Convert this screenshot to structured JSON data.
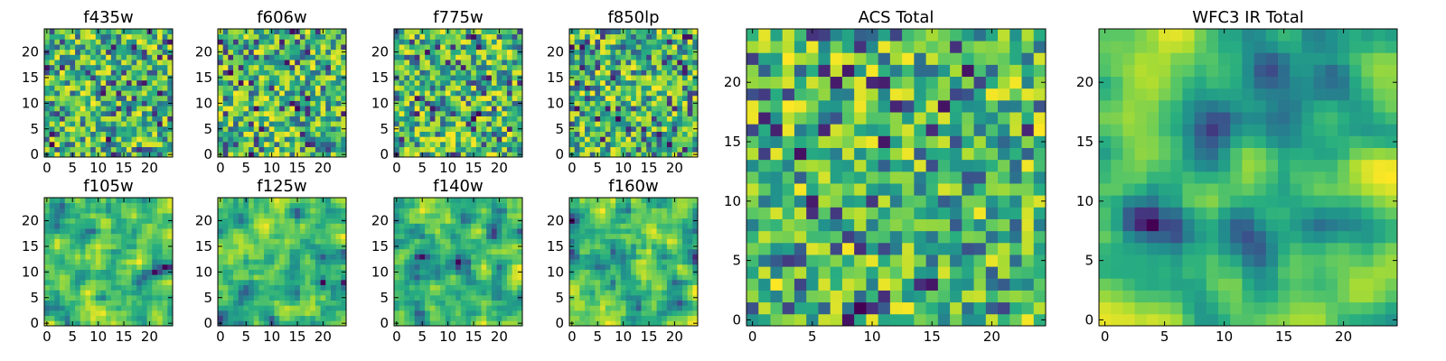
{
  "chart_data": [
    {
      "type": "heatmap",
      "title": "f435w",
      "grid_size": 25,
      "xticks": [
        "0",
        "5",
        "10",
        "15",
        "20"
      ],
      "yticks": [
        "0",
        "5",
        "10",
        "15",
        "20"
      ],
      "xlim": [
        -0.5,
        24.5
      ],
      "ylim": [
        -0.5,
        24.5
      ],
      "colormap": "viridis",
      "smoothness": 0,
      "grid": false
    },
    {
      "type": "heatmap",
      "title": "f606w",
      "grid_size": 25,
      "xticks": [
        "0",
        "5",
        "10",
        "15",
        "20"
      ],
      "yticks": [
        "0",
        "5",
        "10",
        "15",
        "20"
      ],
      "xlim": [
        -0.5,
        24.5
      ],
      "ylim": [
        -0.5,
        24.5
      ],
      "colormap": "viridis",
      "smoothness": 0,
      "grid": false
    },
    {
      "type": "heatmap",
      "title": "f775w",
      "grid_size": 25,
      "xticks": [
        "0",
        "5",
        "10",
        "15",
        "20"
      ],
      "yticks": [
        "0",
        "5",
        "10",
        "15",
        "20"
      ],
      "xlim": [
        -0.5,
        24.5
      ],
      "ylim": [
        -0.5,
        24.5
      ],
      "colormap": "viridis",
      "smoothness": 0,
      "grid": false
    },
    {
      "type": "heatmap",
      "title": "f850lp",
      "grid_size": 25,
      "xticks": [
        "0",
        "5",
        "10",
        "15",
        "20"
      ],
      "yticks": [
        "0",
        "5",
        "10",
        "15",
        "20"
      ],
      "xlim": [
        -0.5,
        24.5
      ],
      "ylim": [
        -0.5,
        24.5
      ],
      "colormap": "viridis",
      "smoothness": 0,
      "grid": false
    },
    {
      "type": "heatmap",
      "title": "f105w",
      "grid_size": 25,
      "xticks": [
        "0",
        "5",
        "10",
        "15",
        "20"
      ],
      "yticks": [
        "0",
        "5",
        "10",
        "15",
        "20"
      ],
      "xlim": [
        -0.5,
        24.5
      ],
      "ylim": [
        -0.5,
        24.5
      ],
      "colormap": "viridis",
      "smoothness": 1,
      "grid": false
    },
    {
      "type": "heatmap",
      "title": "f125w",
      "grid_size": 25,
      "xticks": [
        "0",
        "5",
        "10",
        "15",
        "20"
      ],
      "yticks": [
        "0",
        "5",
        "10",
        "15",
        "20"
      ],
      "xlim": [
        -0.5,
        24.5
      ],
      "ylim": [
        -0.5,
        24.5
      ],
      "colormap": "viridis",
      "smoothness": 1,
      "grid": false
    },
    {
      "type": "heatmap",
      "title": "f140w",
      "grid_size": 25,
      "xticks": [
        "0",
        "5",
        "10",
        "15",
        "20"
      ],
      "yticks": [
        "0",
        "5",
        "10",
        "15",
        "20"
      ],
      "xlim": [
        -0.5,
        24.5
      ],
      "ylim": [
        -0.5,
        24.5
      ],
      "colormap": "viridis",
      "smoothness": 1,
      "grid": false
    },
    {
      "type": "heatmap",
      "title": "f160w",
      "grid_size": 25,
      "xticks": [
        "0",
        "5",
        "10",
        "15",
        "20"
      ],
      "yticks": [
        "0",
        "5",
        "10",
        "15",
        "20"
      ],
      "xlim": [
        -0.5,
        24.5
      ],
      "ylim": [
        -0.5,
        24.5
      ],
      "colormap": "viridis",
      "smoothness": 1,
      "grid": false
    },
    {
      "type": "heatmap",
      "title": "ACS Total",
      "grid_size": 25,
      "xticks": [
        "0",
        "5",
        "10",
        "15",
        "20"
      ],
      "yticks": [
        "0",
        "5",
        "10",
        "15",
        "20"
      ],
      "xlim": [
        -0.5,
        24.5
      ],
      "ylim": [
        -0.5,
        24.5
      ],
      "colormap": "viridis",
      "smoothness": 0,
      "grid": false
    },
    {
      "type": "heatmap",
      "title": "WFC3 IR Total",
      "grid_size": 25,
      "xticks": [
        "0",
        "5",
        "10",
        "15",
        "20"
      ],
      "yticks": [
        "0",
        "5",
        "10",
        "15",
        "20"
      ],
      "xlim": [
        -0.5,
        24.5
      ],
      "ylim": [
        -0.5,
        24.5
      ],
      "colormap": "viridis",
      "smoothness": 2,
      "grid": false
    }
  ]
}
